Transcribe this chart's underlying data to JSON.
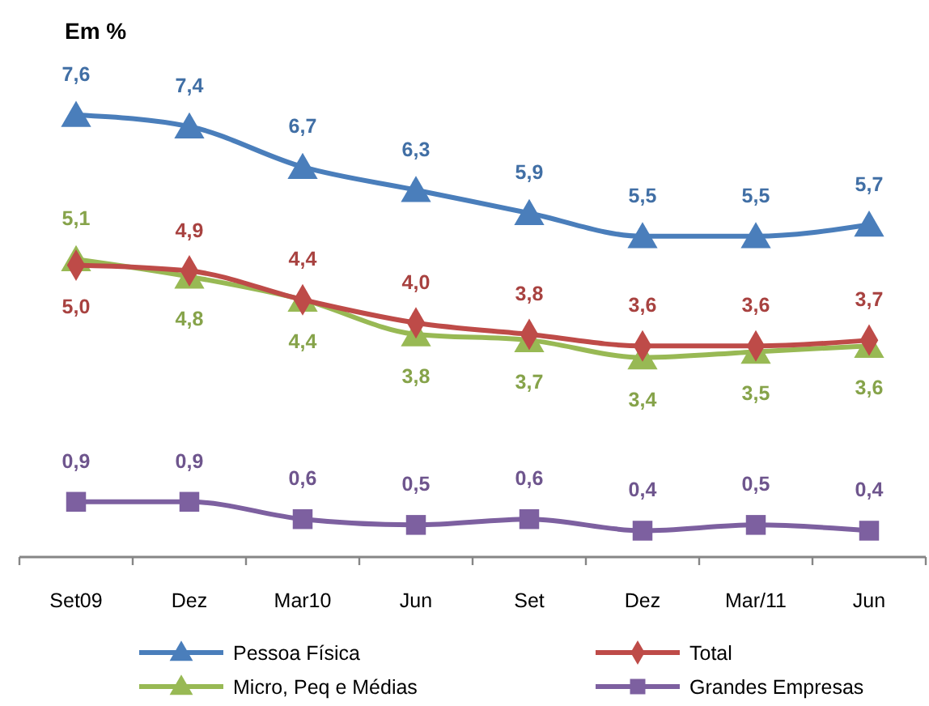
{
  "chart_data": {
    "type": "line",
    "title": "Em %",
    "categories": [
      "Set09",
      "Dez",
      "Mar10",
      "Jun",
      "Set",
      "Dez",
      "Mar/11",
      "Jun"
    ],
    "series": [
      {
        "name": "Pessoa Física",
        "color": "#4a7ebb",
        "marker": "triangle",
        "values": [
          7.6,
          7.4,
          6.7,
          6.3,
          5.9,
          5.5,
          5.5,
          5.7
        ],
        "value_labels": [
          "7,6",
          "7,4",
          "6,7",
          "6,3",
          "5,9",
          "5,5",
          "5,5",
          "5,7"
        ]
      },
      {
        "name": "Total",
        "color": "#be4b48",
        "marker": "diamond",
        "values": [
          5.0,
          4.9,
          4.4,
          4.0,
          3.8,
          3.6,
          3.6,
          3.7
        ],
        "value_labels": [
          "5,0",
          "4,9",
          "4,4",
          "4,0",
          "3,8",
          "3,6",
          "3,6",
          "3,7"
        ]
      },
      {
        "name": "Micro, Peq e Médias",
        "color": "#98b954",
        "marker": "triangle",
        "values": [
          5.1,
          4.8,
          4.4,
          3.8,
          3.7,
          3.4,
          3.5,
          3.6
        ],
        "value_labels": [
          "5,1",
          "4,8",
          "4,4",
          "3,8",
          "3,7",
          "3,4",
          "3,5",
          "3,6"
        ]
      },
      {
        "name": "Grandes Empresas",
        "color": "#7d60a0",
        "marker": "square",
        "values": [
          0.9,
          0.9,
          0.6,
          0.5,
          0.6,
          0.4,
          0.5,
          0.4
        ],
        "value_labels": [
          "0,9",
          "0,9",
          "0,6",
          "0,5",
          "0,6",
          "0,4",
          "0,5",
          "0,4"
        ]
      }
    ],
    "legend": "bottom"
  }
}
